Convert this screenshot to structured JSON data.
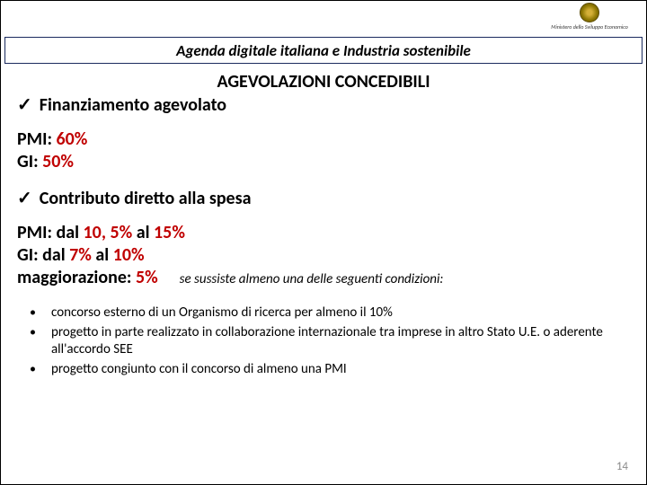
{
  "logo": {
    "ministry": "Ministero dello Sviluppo Economico"
  },
  "header": {
    "title": "Agenda digitale italiana e Industria sostenibile"
  },
  "main": {
    "title": "AGEVOLAZIONI CONCEDIBILI",
    "item1": {
      "label": "Finanziamento agevolato"
    },
    "block1": {
      "pmi_label": "PMI: ",
      "pmi_value": "60%",
      "gi_label": "GI: ",
      "gi_value": "50%"
    },
    "item2": {
      "label": "Contributo diretto alla spesa"
    },
    "block2": {
      "pmi_label": "PMI: ",
      "pmi_text1": "dal ",
      "pmi_val1": "10, 5%",
      "pmi_text2": " al ",
      "pmi_val2": "15%",
      "gi_label": "GI: ",
      "gi_text1": "dal ",
      "gi_val1": "7%",
      "gi_text2": " al ",
      "gi_val2": "10%",
      "magg_label": "maggiorazione: ",
      "magg_val": "5%",
      "cond_note": "se sussiste almeno una delle seguenti condizioni:"
    },
    "bullets": [
      "concorso esterno di un Organismo di ricerca per almeno il 10%",
      "progetto in parte realizzato in collaborazione internazionale tra imprese in altro Stato U.E. o aderente all'accordo SEE",
      "progetto congiunto con il concorso di almeno una PMI"
    ]
  },
  "page": "14",
  "colors": {
    "accent_red": "#c00000",
    "border_navy": "#1a2a5e"
  }
}
